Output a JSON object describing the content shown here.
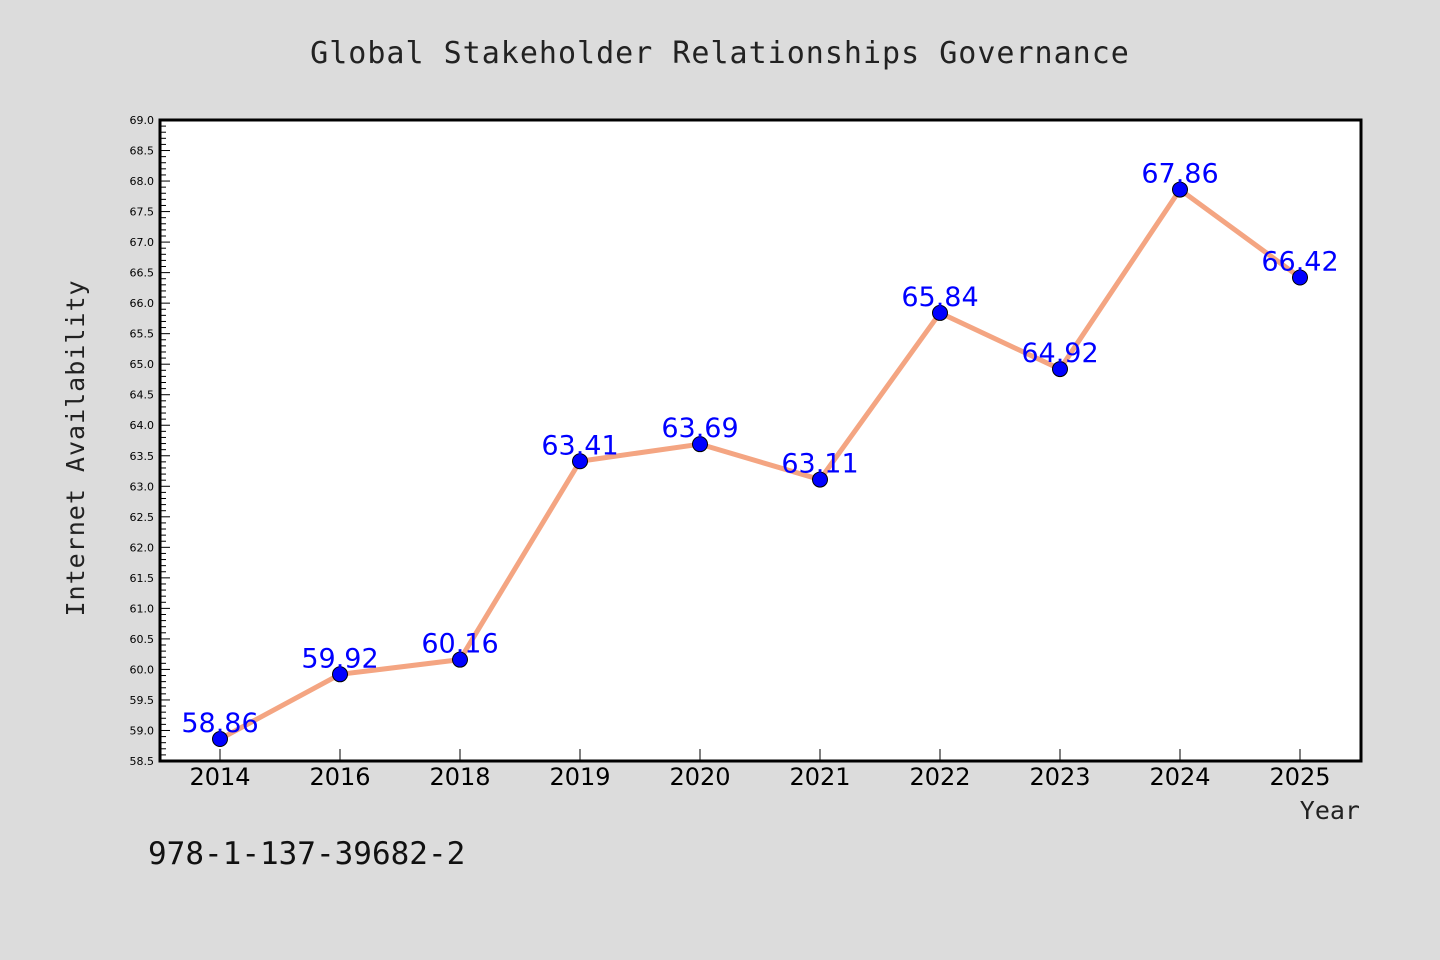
{
  "chart_data": {
    "type": "line",
    "title": "Global Stakeholder Relationships Governance",
    "xlabel": "Year",
    "ylabel": "Internet Availability",
    "categories": [
      "2014",
      "2016",
      "2018",
      "2019",
      "2020",
      "2021",
      "2022",
      "2023",
      "2024",
      "2025"
    ],
    "series": [
      {
        "values": [
          58.86,
          59.92,
          60.16,
          63.41,
          63.69,
          63.11,
          65.84,
          64.92,
          67.86,
          66.42
        ],
        "data_labels": [
          "58.86",
          "59.92",
          "60.16",
          "63.41",
          "63.69",
          "63.11",
          "65.84",
          "64.92",
          "67.86",
          "66.42"
        ]
      }
    ],
    "ylim": [
      58.5,
      69.0
    ],
    "y_ticks": [
      "58.5",
      "59.0",
      "59.5",
      "60.0",
      "60.5",
      "61.0",
      "61.5",
      "62.0",
      "62.5",
      "63.0",
      "63.5",
      "64.0",
      "64.5",
      "65.0",
      "65.5",
      "66.0",
      "66.5",
      "67.0",
      "67.5",
      "68.0",
      "68.5",
      "69.0"
    ],
    "y_minor_step": 0.1,
    "grid": false,
    "colors": {
      "line": "#f4a582",
      "marker": "#0000ff",
      "label": "#0000ff",
      "background": "#dcdcdc",
      "plot_background": "#ffffff"
    }
  },
  "footer": {
    "isbn": "978-1-137-39682-2"
  }
}
